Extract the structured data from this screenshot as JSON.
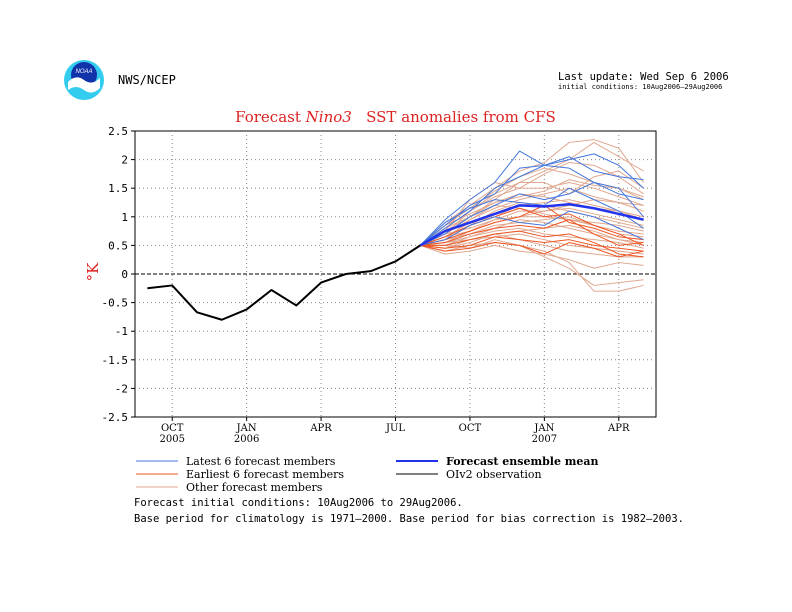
{
  "header": {
    "agency": "NWS/NCEP",
    "last_update": "Last update: Wed Sep 6 2006",
    "initial_conditions": "initial conditions: 10Aug2006—29Aug2006",
    "logo_text": "NOAA"
  },
  "footer": {
    "line1": "Forecast initial conditions: 10Aug2006 to 29Aug2006.",
    "line2": "Base period for climatology is 1971—2000. Base period for bias correction is 1982—2003."
  },
  "colors": {
    "latest": "#4477dd",
    "earliest": "#ee5522",
    "other": "#e0a890",
    "mean": "#2233ee",
    "observation": "#000000",
    "title": "#dd2222",
    "logo_outer": "#33ccee",
    "logo_inner": "#1133aa"
  },
  "chart_data": {
    "type": "line",
    "title_parts": [
      "Forecast ",
      "Nino3",
      "   SST anomalies from CFS"
    ],
    "ylabel": "°K",
    "xlabel": "",
    "ylim": [
      -2.5,
      2.5
    ],
    "yticks": [
      "2.5",
      "2",
      "1.5",
      "1",
      "0.5",
      "0",
      "-0.5",
      "-1",
      "-1.5",
      "-2",
      "-2.5"
    ],
    "grid": true,
    "x_months": [
      "2005-09",
      "2005-10",
      "2005-11",
      "2005-12",
      "2006-01",
      "2006-02",
      "2006-03",
      "2006-04",
      "2006-05",
      "2006-06",
      "2006-07",
      "2006-08",
      "2006-09",
      "2006-10",
      "2006-11",
      "2006-12",
      "2007-01",
      "2007-02",
      "2007-03",
      "2007-04",
      "2007-05"
    ],
    "xticks": [
      {
        "month": "2005-10",
        "label": "OCT",
        "sub": "2005"
      },
      {
        "month": "2006-01",
        "label": "JAN",
        "sub": "2006"
      },
      {
        "month": "2006-04",
        "label": "APR",
        "sub": ""
      },
      {
        "month": "2006-07",
        "label": "JUL",
        "sub": ""
      },
      {
        "month": "2006-10",
        "label": "OCT",
        "sub": ""
      },
      {
        "month": "2007-01",
        "label": "JAN",
        "sub": "2007"
      },
      {
        "month": "2007-04",
        "label": "APR",
        "sub": ""
      }
    ],
    "legend": [
      {
        "label": "Latest 6 forecast members",
        "key": "latest"
      },
      {
        "label": "Forecast ensemble mean",
        "key": "mean"
      },
      {
        "label": "Earliest 6 forecast members",
        "key": "earliest"
      },
      {
        "label": "OIv2 observation",
        "key": "observation"
      },
      {
        "label": "Other forecast members",
        "key": "other"
      }
    ],
    "observation": {
      "months": [
        "2005-09",
        "2005-10",
        "2005-11",
        "2005-12",
        "2006-01",
        "2006-02",
        "2006-03",
        "2006-04",
        "2006-05",
        "2006-06",
        "2006-07",
        "2006-08"
      ],
      "values": [
        -0.25,
        -0.2,
        -0.67,
        -0.8,
        -0.62,
        -0.28,
        -0.55,
        -0.15,
        0.0,
        0.05,
        0.22,
        0.5
      ]
    },
    "forecast_months": [
      "2006-08",
      "2006-09",
      "2006-10",
      "2006-11",
      "2006-12",
      "2007-01",
      "2007-02",
      "2007-03",
      "2007-04",
      "2007-05"
    ],
    "ensemble_mean": [
      0.5,
      0.75,
      0.9,
      1.05,
      1.2,
      1.18,
      1.22,
      1.15,
      1.05,
      0.95
    ],
    "latest_members": [
      [
        0.5,
        0.95,
        1.3,
        1.6,
        2.15,
        1.9,
        2.0,
        2.1,
        1.9,
        1.5
      ],
      [
        0.5,
        0.8,
        1.1,
        1.5,
        1.7,
        1.9,
        2.05,
        1.8,
        1.7,
        1.65
      ],
      [
        0.5,
        0.85,
        1.2,
        1.4,
        1.85,
        1.9,
        1.85,
        1.6,
        1.4,
        1.3
      ],
      [
        0.5,
        0.7,
        1.0,
        1.2,
        1.4,
        1.3,
        1.4,
        1.6,
        1.5,
        1.0
      ],
      [
        0.5,
        0.9,
        1.15,
        1.3,
        1.25,
        1.2,
        1.5,
        1.3,
        1.1,
        0.8
      ],
      [
        0.5,
        0.6,
        0.85,
        1.0,
        0.9,
        0.85,
        1.1,
        1.0,
        0.8,
        0.6
      ]
    ],
    "earliest_members": [
      [
        0.5,
        0.55,
        0.7,
        0.8,
        0.85,
        0.8,
        0.95,
        0.7,
        0.5,
        0.55
      ],
      [
        0.5,
        0.45,
        0.5,
        0.65,
        0.6,
        0.55,
        0.6,
        0.5,
        0.45,
        0.4
      ],
      [
        0.5,
        0.6,
        0.75,
        0.9,
        1.0,
        1.2,
        0.9,
        0.8,
        0.65,
        0.6
      ],
      [
        0.5,
        0.4,
        0.45,
        0.55,
        0.5,
        0.35,
        0.55,
        0.45,
        0.3,
        0.4
      ],
      [
        0.5,
        0.65,
        0.85,
        1.0,
        1.15,
        1.0,
        1.05,
        0.85,
        0.7,
        0.5
      ],
      [
        0.5,
        0.5,
        0.6,
        0.7,
        0.75,
        0.65,
        0.7,
        0.55,
        0.35,
        0.3
      ]
    ],
    "other_members": [
      [
        0.5,
        0.8,
        1.0,
        1.3,
        1.6,
        1.8,
        2.0,
        2.3,
        2.05,
        1.8
      ],
      [
        0.5,
        0.9,
        1.2,
        1.5,
        1.8,
        1.95,
        2.3,
        2.35,
        2.2,
        1.6
      ],
      [
        0.5,
        0.75,
        1.3,
        1.6,
        1.5,
        1.75,
        1.95,
        1.9,
        1.7,
        1.4
      ],
      [
        0.5,
        0.7,
        1.1,
        1.4,
        1.6,
        1.6,
        1.4,
        1.7,
        1.8,
        1.5
      ],
      [
        0.5,
        0.85,
        1.05,
        1.25,
        1.35,
        1.45,
        1.65,
        1.55,
        1.5,
        1.35
      ],
      [
        0.5,
        0.6,
        0.95,
        1.15,
        1.3,
        1.4,
        1.5,
        1.35,
        1.25,
        1.2
      ],
      [
        0.5,
        0.65,
        0.9,
        1.0,
        1.2,
        1.25,
        1.3,
        1.2,
        1.1,
        1.0
      ],
      [
        0.5,
        0.7,
        0.8,
        0.95,
        1.1,
        1.1,
        1.15,
        1.05,
        0.95,
        0.85
      ],
      [
        0.5,
        0.55,
        0.75,
        0.95,
        1.0,
        1.0,
        0.95,
        0.9,
        0.85,
        0.75
      ],
      [
        0.5,
        0.6,
        0.7,
        0.85,
        0.9,
        0.95,
        1.0,
        0.85,
        0.7,
        0.65
      ],
      [
        0.5,
        0.45,
        0.55,
        0.7,
        0.75,
        0.8,
        0.85,
        0.75,
        0.6,
        0.55
      ],
      [
        0.5,
        0.5,
        0.65,
        0.75,
        0.8,
        0.7,
        0.65,
        0.6,
        0.55,
        0.45
      ],
      [
        0.5,
        0.55,
        0.6,
        0.7,
        0.6,
        0.5,
        0.4,
        0.35,
        0.3,
        0.3
      ],
      [
        0.5,
        0.4,
        0.5,
        0.55,
        0.5,
        0.3,
        0.1,
        -0.2,
        -0.15,
        -0.1
      ],
      [
        0.5,
        0.5,
        0.45,
        0.6,
        0.5,
        0.4,
        0.2,
        -0.3,
        -0.3,
        -0.2
      ],
      [
        0.5,
        0.35,
        0.4,
        0.5,
        0.4,
        0.35,
        0.25,
        0.1,
        0.2,
        0.15
      ],
      [
        0.5,
        0.75,
        1.0,
        1.25,
        1.4,
        1.35,
        1.25,
        1.15,
        1.1,
        0.95
      ],
      [
        0.5,
        0.8,
        1.1,
        1.35,
        1.5,
        1.5,
        1.6,
        1.5,
        1.35,
        1.2
      ],
      [
        0.5,
        0.6,
        0.85,
        1.1,
        1.25,
        1.2,
        1.1,
        1.0,
        0.9,
        0.8
      ],
      [
        0.5,
        0.7,
        0.95,
        1.2,
        1.15,
        1.05,
        0.95,
        0.85,
        0.75,
        0.7
      ],
      [
        0.5,
        0.55,
        0.65,
        0.8,
        0.95,
        0.9,
        0.8,
        0.7,
        0.6,
        0.5
      ],
      [
        0.5,
        0.65,
        0.75,
        0.9,
        1.0,
        1.1,
        1.2,
        1.3,
        1.25,
        1.1
      ],
      [
        0.5,
        0.85,
        1.15,
        1.45,
        1.7,
        1.85,
        1.75,
        1.6,
        1.5,
        1.3
      ],
      [
        0.5,
        0.45,
        0.6,
        0.65,
        0.7,
        0.6,
        0.5,
        0.45,
        0.4,
        0.35
      ]
    ]
  }
}
